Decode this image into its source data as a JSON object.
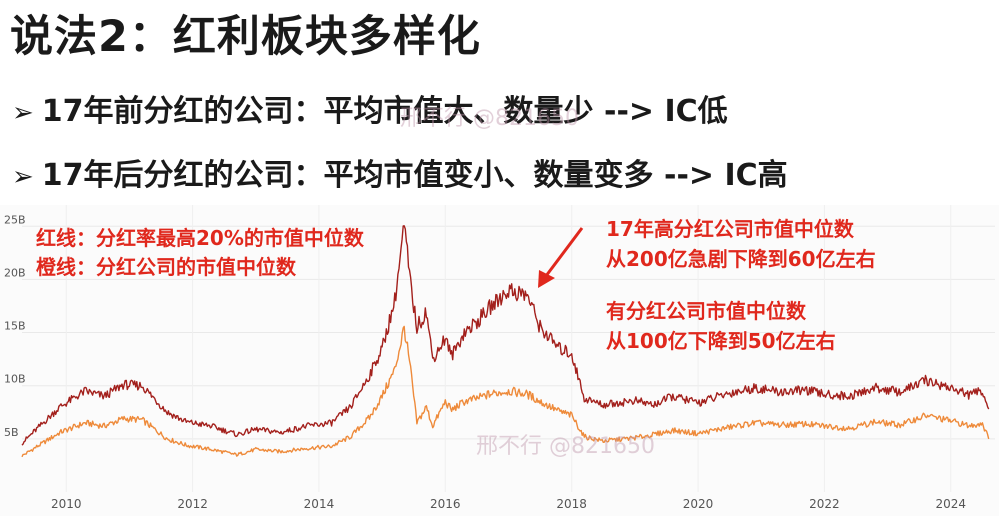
{
  "slide": {
    "title": "说法2：红利板块多样化",
    "bullet_mark": "➢",
    "bullets": [
      "17年前分红的公司：平均市值大、数量少 --> IC低",
      "17年后分红的公司：平均市值变小、数量变多 --> IC高"
    ],
    "watermark": "邢不行 @821650"
  },
  "legend": {
    "red_label": "红线：分红率最高20%的市值中位数",
    "orange_label": "橙线：分红公司的市值中位数"
  },
  "annotations": {
    "peak_line1": "17年高分红公司市值中位数",
    "peak_line2": "从200亿急剧下降到60亿左右",
    "all_line1": "有分红公司市值中位数",
    "all_line2": "从100亿下降到50亿左右"
  },
  "colors": {
    "red": "#a3201c",
    "orange": "#ee8a3a",
    "annotation": "#e0281d"
  },
  "chart_data": {
    "type": "line",
    "title": "",
    "xlabel": "",
    "ylabel": "",
    "x_ticks": [
      "2010",
      "2012",
      "2014",
      "2016",
      "2018",
      "2020",
      "2022",
      "2024"
    ],
    "y_ticks": [
      "5B",
      "10B",
      "15B",
      "20B",
      "25B"
    ],
    "xlim": [
      2009.3,
      2024.7
    ],
    "ylim": [
      0,
      27
    ],
    "series": [
      {
        "name": "分红率最高20%的市值中位数",
        "color": "#a3201c",
        "x": [
          2009.3,
          2009.6,
          2009.9,
          2010.3,
          2010.6,
          2010.9,
          2011.2,
          2011.6,
          2011.9,
          2012.3,
          2012.7,
          2013.0,
          2013.4,
          2013.8,
          2014.2,
          2014.5,
          2014.8,
          2015.0,
          2015.2,
          2015.35,
          2015.45,
          2015.55,
          2015.7,
          2015.8,
          2016.0,
          2016.1,
          2016.3,
          2016.5,
          2016.7,
          2017.0,
          2017.3,
          2017.5,
          2017.8,
          2018.0,
          2018.2,
          2018.5,
          2019.0,
          2019.3,
          2019.6,
          2020.0,
          2020.5,
          2020.9,
          2021.3,
          2021.7,
          2022.0,
          2022.4,
          2022.8,
          2023.2,
          2023.6,
          2024.0,
          2024.3,
          2024.5,
          2024.6
        ],
        "values": [
          4.6,
          6.3,
          8.0,
          9.5,
          9.0,
          10.1,
          10.0,
          7.5,
          6.6,
          6.2,
          5.4,
          5.9,
          5.6,
          6.2,
          6.5,
          8.0,
          11.0,
          13.5,
          18.0,
          25.0,
          19.5,
          15.5,
          17.0,
          12.5,
          14.5,
          12.8,
          15.0,
          16.0,
          17.3,
          19.0,
          18.5,
          15.5,
          13.5,
          13.0,
          8.8,
          8.2,
          8.6,
          8.2,
          9.0,
          8.4,
          9.3,
          9.8,
          9.4,
          9.6,
          9.2,
          9.0,
          9.8,
          9.4,
          10.5,
          9.8,
          9.1,
          9.6,
          7.8
        ]
      },
      {
        "name": "分红公司的市值中位数",
        "color": "#ee8a3a",
        "x": [
          2009.3,
          2009.6,
          2009.9,
          2010.3,
          2010.6,
          2010.9,
          2011.2,
          2011.6,
          2011.9,
          2012.3,
          2012.7,
          2013.0,
          2013.4,
          2013.8,
          2014.2,
          2014.5,
          2014.8,
          2015.0,
          2015.2,
          2015.35,
          2015.45,
          2015.55,
          2015.7,
          2015.8,
          2016.0,
          2016.1,
          2016.3,
          2016.5,
          2016.7,
          2017.0,
          2017.3,
          2017.5,
          2017.8,
          2018.0,
          2018.2,
          2018.5,
          2019.0,
          2019.3,
          2019.6,
          2020.0,
          2020.5,
          2020.9,
          2021.3,
          2021.7,
          2022.0,
          2022.4,
          2022.8,
          2023.2,
          2023.6,
          2024.0,
          2024.3,
          2024.5,
          2024.6
        ],
        "values": [
          3.4,
          4.5,
          5.6,
          6.5,
          6.2,
          6.9,
          6.8,
          5.0,
          4.4,
          4.0,
          3.5,
          4.0,
          3.8,
          4.1,
          4.3,
          5.2,
          7.0,
          9.0,
          11.5,
          15.5,
          11.5,
          6.5,
          8.0,
          6.2,
          8.5,
          7.7,
          8.5,
          8.8,
          9.2,
          9.5,
          9.2,
          8.5,
          7.6,
          7.2,
          5.2,
          4.8,
          5.1,
          5.4,
          5.8,
          5.5,
          6.1,
          6.5,
          6.3,
          6.4,
          6.2,
          6.0,
          6.6,
          6.3,
          7.2,
          6.7,
          6.2,
          6.5,
          5.0
        ]
      }
    ]
  }
}
